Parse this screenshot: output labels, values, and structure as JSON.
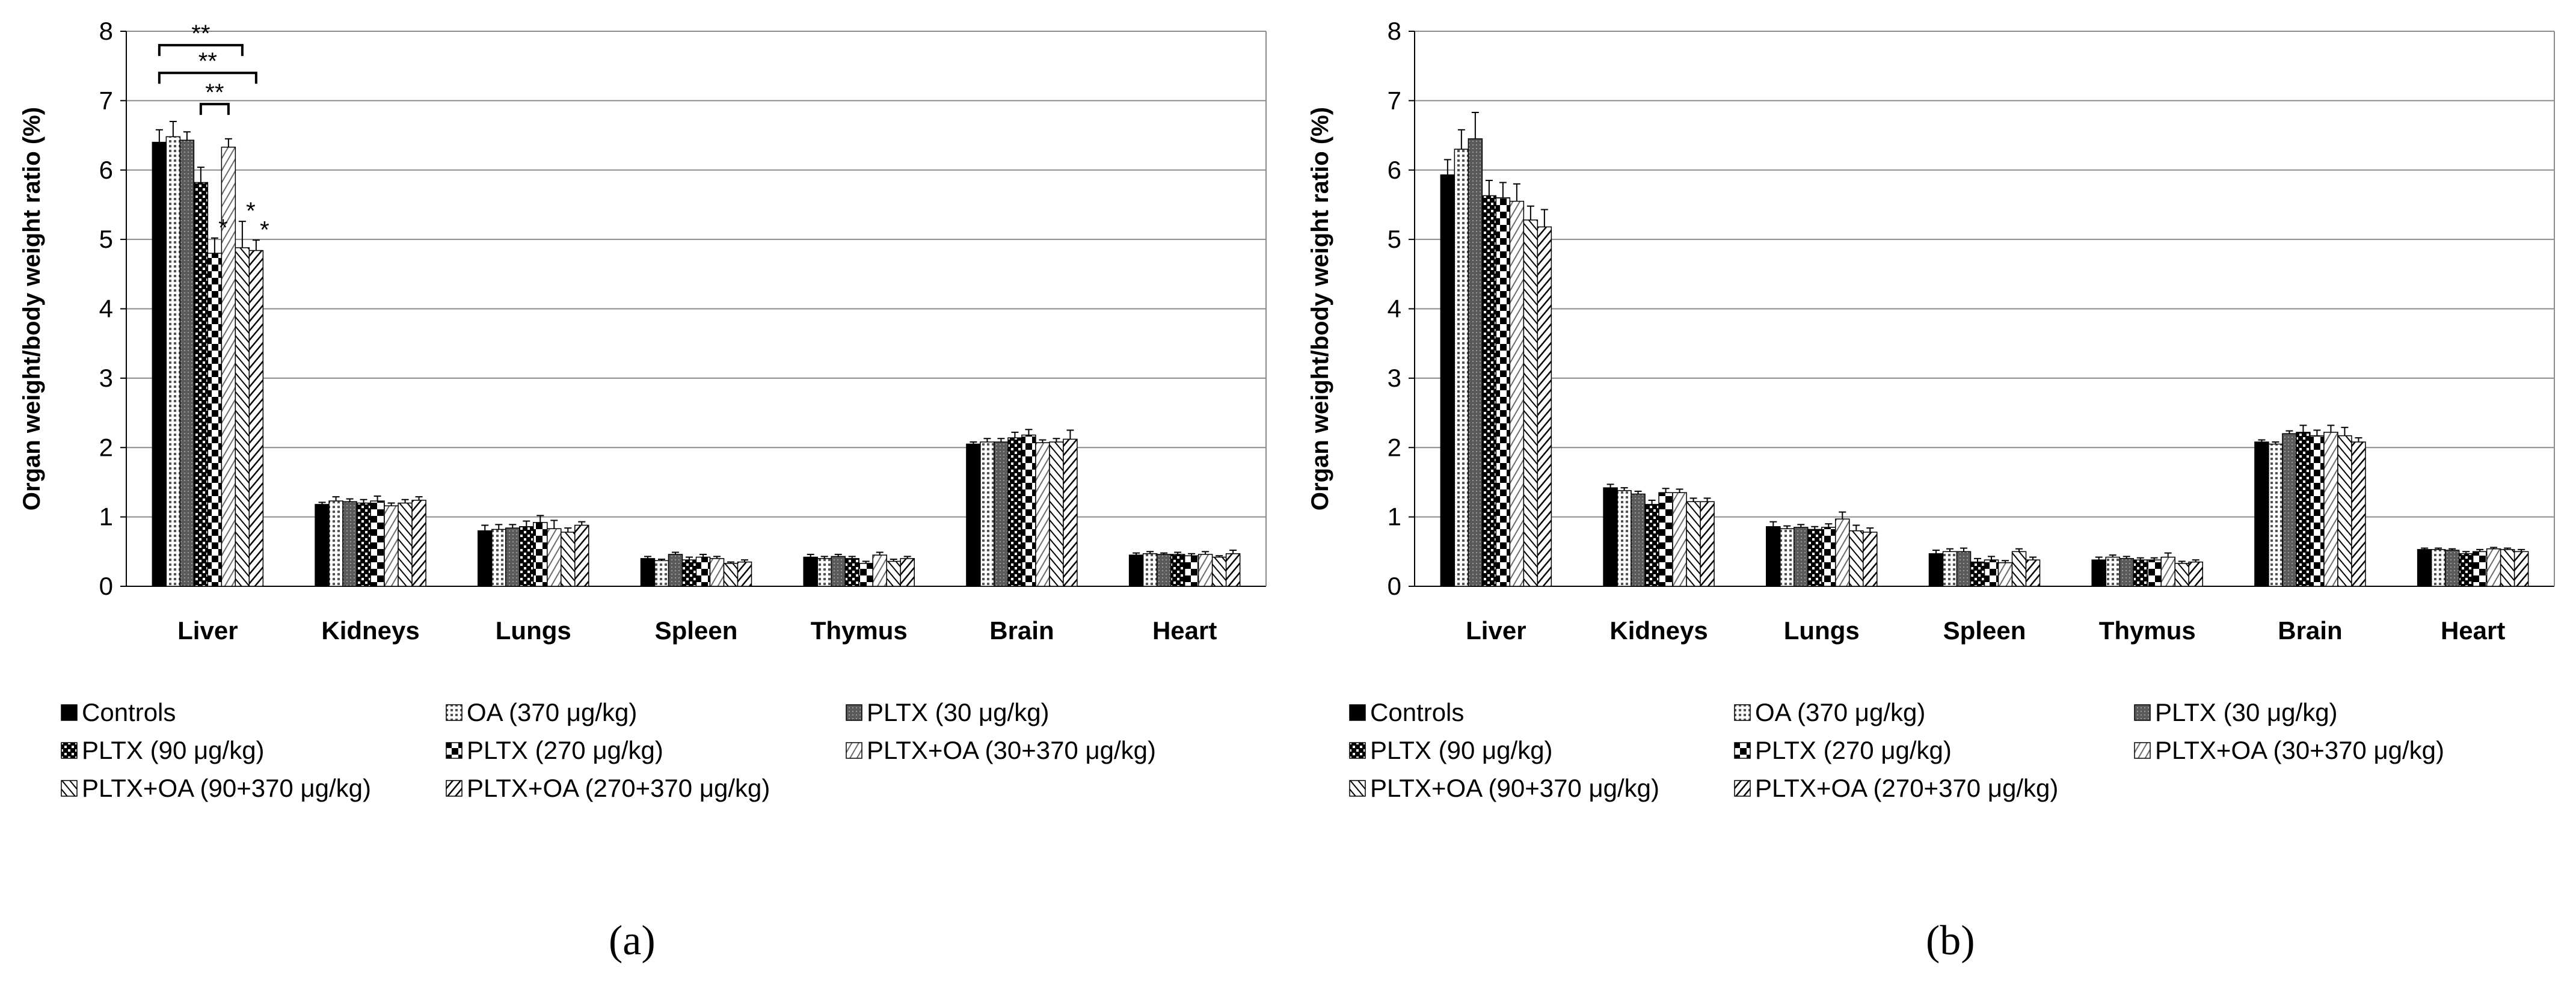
{
  "chart_data": [
    {
      "type": "bar",
      "panel_label": "(a)",
      "title": "",
      "xlabel": "",
      "ylabel": "Organ weight/body weight ratio (%)",
      "ylim": [
        0,
        8
      ],
      "yticks": [
        "0",
        "1",
        "2",
        "3",
        "4",
        "5",
        "6",
        "7",
        "8"
      ],
      "grid": true,
      "categories": [
        "Liver",
        "Kidneys",
        "Lungs",
        "Spleen",
        "Thymus",
        "Brain",
        "Heart"
      ],
      "series": [
        {
          "name": "Controls",
          "values": [
            6.4,
            1.18,
            0.8,
            0.4,
            0.42,
            2.05,
            0.45
          ],
          "errors": [
            0.18,
            0.03,
            0.08,
            0.03,
            0.04,
            0.03,
            0.03
          ]
        },
        {
          "name": "OA (370 μg/kg)",
          "values": [
            6.48,
            1.23,
            0.82,
            0.37,
            0.4,
            2.08,
            0.47
          ],
          "errors": [
            0.22,
            0.06,
            0.07,
            0.02,
            0.03,
            0.05,
            0.03
          ]
        },
        {
          "name": "PLTX (30 μg/kg)",
          "values": [
            6.43,
            1.22,
            0.84,
            0.46,
            0.43,
            2.08,
            0.46
          ],
          "errors": [
            0.12,
            0.04,
            0.05,
            0.03,
            0.03,
            0.05,
            0.02
          ]
        },
        {
          "name": "PLTX (90 μg/kg)",
          "values": [
            5.82,
            1.2,
            0.86,
            0.38,
            0.4,
            2.14,
            0.46
          ],
          "errors": [
            0.22,
            0.05,
            0.08,
            0.04,
            0.03,
            0.08,
            0.03
          ]
        },
        {
          "name": "PLTX (270 μg/kg)",
          "values": [
            4.8,
            1.23,
            0.92,
            0.42,
            0.33,
            2.18,
            0.44
          ],
          "errors": [
            0.22,
            0.07,
            0.1,
            0.04,
            0.03,
            0.08,
            0.03
          ]
        },
        {
          "name": "PLTX+OA (30+370 μg/kg)",
          "values": [
            6.33,
            1.16,
            0.83,
            0.4,
            0.45,
            2.07,
            0.46
          ],
          "errors": [
            0.12,
            0.04,
            0.12,
            0.03,
            0.04,
            0.04,
            0.04
          ]
        },
        {
          "name": "PLTX+OA (90+370 μg/kg)",
          "values": [
            4.88,
            1.2,
            0.78,
            0.33,
            0.36,
            2.08,
            0.42
          ],
          "errors": [
            0.38,
            0.05,
            0.06,
            0.02,
            0.03,
            0.05,
            0.02
          ]
        },
        {
          "name": "PLTX+OA (270+370 μg/kg)",
          "values": [
            4.84,
            1.24,
            0.88,
            0.35,
            0.4,
            2.12,
            0.47
          ],
          "errors": [
            0.15,
            0.05,
            0.05,
            0.03,
            0.03,
            0.13,
            0.05
          ]
        }
      ],
      "significance": {
        "brackets": [
          {
            "category": "Liver",
            "from_series": 0,
            "to_series": 6,
            "label": "**"
          },
          {
            "category": "Liver",
            "from_series": 0,
            "to_series": 7,
            "label": "**"
          },
          {
            "category": "Liver",
            "from_series": 3,
            "to_series": 5,
            "label": "**"
          }
        ],
        "stars": [
          {
            "category": "Liver",
            "series": 4,
            "label": "*"
          },
          {
            "category": "Liver",
            "series": 6,
            "label": "*"
          },
          {
            "category": "Liver",
            "series": 7,
            "label": "*"
          }
        ]
      }
    },
    {
      "type": "bar",
      "panel_label": "(b)",
      "title": "",
      "xlabel": "",
      "ylabel": "Organ weight/body weight ratio (%)",
      "ylim": [
        0,
        8
      ],
      "yticks": [
        "0",
        "1",
        "2",
        "3",
        "4",
        "5",
        "6",
        "7",
        "8"
      ],
      "grid": true,
      "categories": [
        "Liver",
        "Kidneys",
        "Lungs",
        "Spleen",
        "Thymus",
        "Brain",
        "Heart"
      ],
      "series": [
        {
          "name": "Controls",
          "values": [
            5.93,
            1.42,
            0.86,
            0.47,
            0.38,
            2.08,
            0.53
          ],
          "errors": [
            0.22,
            0.05,
            0.07,
            0.05,
            0.04,
            0.03,
            0.02
          ]
        },
        {
          "name": "OA (370 μg/kg)",
          "values": [
            6.3,
            1.38,
            0.83,
            0.5,
            0.42,
            2.05,
            0.53
          ],
          "errors": [
            0.28,
            0.04,
            0.04,
            0.04,
            0.03,
            0.03,
            0.02
          ]
        },
        {
          "name": "PLTX (30 μg/kg)",
          "values": [
            6.45,
            1.33,
            0.85,
            0.5,
            0.4,
            2.2,
            0.52
          ],
          "errors": [
            0.38,
            0.04,
            0.04,
            0.05,
            0.03,
            0.04,
            0.02
          ]
        },
        {
          "name": "PLTX (90 μg/kg)",
          "values": [
            5.63,
            1.18,
            0.82,
            0.35,
            0.38,
            2.22,
            0.47
          ],
          "errors": [
            0.22,
            0.06,
            0.04,
            0.05,
            0.03,
            0.1,
            0.03
          ]
        },
        {
          "name": "PLTX (270 μg/kg)",
          "values": [
            5.6,
            1.35,
            0.85,
            0.38,
            0.38,
            2.17,
            0.5
          ],
          "errors": [
            0.22,
            0.06,
            0.05,
            0.05,
            0.03,
            0.08,
            0.03
          ]
        },
        {
          "name": "PLTX+OA (30+370 μg/kg)",
          "values": [
            5.55,
            1.35,
            0.97,
            0.34,
            0.42,
            2.22,
            0.54
          ],
          "errors": [
            0.25,
            0.05,
            0.1,
            0.03,
            0.06,
            0.1,
            0.02
          ]
        },
        {
          "name": "PLTX+OA (90+370 μg/kg)",
          "values": [
            5.28,
            1.22,
            0.8,
            0.5,
            0.33,
            2.17,
            0.53
          ],
          "errors": [
            0.2,
            0.05,
            0.08,
            0.04,
            0.03,
            0.12,
            0.02
          ]
        },
        {
          "name": "PLTX+OA (270+370 μg/kg)",
          "values": [
            5.18,
            1.22,
            0.78,
            0.38,
            0.35,
            2.08,
            0.5
          ],
          "errors": [
            0.25,
            0.05,
            0.06,
            0.04,
            0.03,
            0.06,
            0.03
          ]
        }
      ]
    }
  ]
}
